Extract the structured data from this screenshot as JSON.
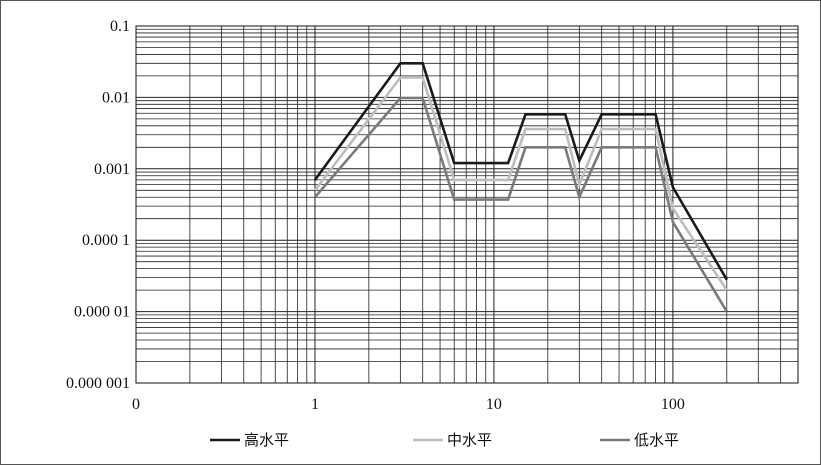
{
  "chart_data": {
    "type": "line",
    "x_scale": "log",
    "y_scale": "log",
    "xlim": [
      0.1,
      500
    ],
    "ylim": [
      1e-06,
      0.1
    ],
    "x_ticks": [
      {
        "value": 0.1,
        "label": "0"
      },
      {
        "value": 1,
        "label": "1"
      },
      {
        "value": 10,
        "label": "10"
      },
      {
        "value": 100,
        "label": "100"
      }
    ],
    "y_ticks": [
      {
        "value": 0.1,
        "label": "0.1"
      },
      {
        "value": 0.01,
        "label": "0.01"
      },
      {
        "value": 0.001,
        "label": "0.001"
      },
      {
        "value": 0.0001,
        "label": "0.000 1"
      },
      {
        "value": 1e-05,
        "label": "0.000 01"
      },
      {
        "value": 1e-06,
        "label": "0.000 001"
      }
    ],
    "grid": true,
    "legend_position": "bottom",
    "series": [
      {
        "name": "高水平",
        "color": "#1a1a1a",
        "x": [
          1,
          3,
          4,
          6,
          12,
          15,
          25,
          30,
          40,
          80,
          100,
          200
        ],
        "y": [
          0.0007,
          0.03,
          0.03,
          0.0012,
          0.0012,
          0.0058,
          0.0058,
          0.0013,
          0.0058,
          0.0058,
          0.00055,
          2.8e-05
        ]
      },
      {
        "name": "中水平",
        "color": "#bdbdbd",
        "x": [
          1,
          3,
          4,
          6,
          12,
          15,
          25,
          30,
          40,
          80,
          100,
          200
        ],
        "y": [
          0.0005,
          0.019,
          0.019,
          0.0007,
          0.0007,
          0.0036,
          0.0036,
          0.0006,
          0.0036,
          0.0036,
          0.00028,
          2e-05
        ]
      },
      {
        "name": "低水平",
        "color": "#7a7a7a",
        "x": [
          1,
          3,
          4,
          6,
          12,
          15,
          25,
          30,
          40,
          80,
          100,
          200
        ],
        "y": [
          0.0004,
          0.0098,
          0.0098,
          0.00037,
          0.00037,
          0.002,
          0.002,
          0.0004,
          0.002,
          0.002,
          0.00018,
          1e-05
        ]
      }
    ]
  }
}
